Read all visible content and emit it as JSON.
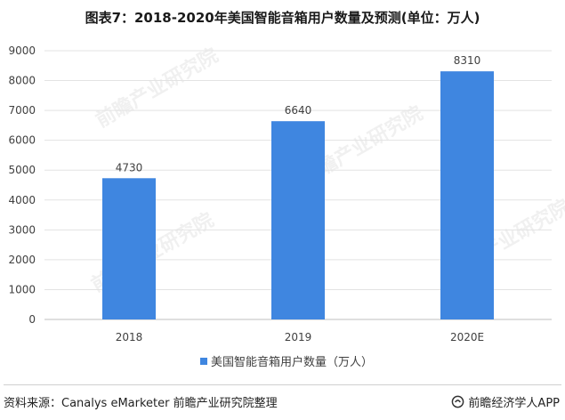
{
  "title": "图表7：2018-2020年美国智能音箱用户数量及预测(单位：万人)",
  "chart_data": {
    "type": "bar",
    "categories": [
      "2018",
      "2019",
      "2020E"
    ],
    "series": [
      {
        "name": "美国智能音箱用户数量（万人）",
        "values": [
          4730,
          6640,
          8310
        ]
      }
    ],
    "data_labels": [
      "4730",
      "6640",
      "8310"
    ],
    "ylim": [
      0,
      9000
    ],
    "y_ticks": [
      0,
      1000,
      2000,
      3000,
      4000,
      5000,
      6000,
      7000,
      8000,
      9000
    ],
    "grid": true,
    "legend_position": "bottom-center",
    "bar_color": "#3f86e0"
  },
  "watermark": "前瞻产业研究院",
  "footer": {
    "source": "资料来源：Canalys eMarketer 前瞻产业研究院整理",
    "brand": "前瞻经济学人APP"
  }
}
